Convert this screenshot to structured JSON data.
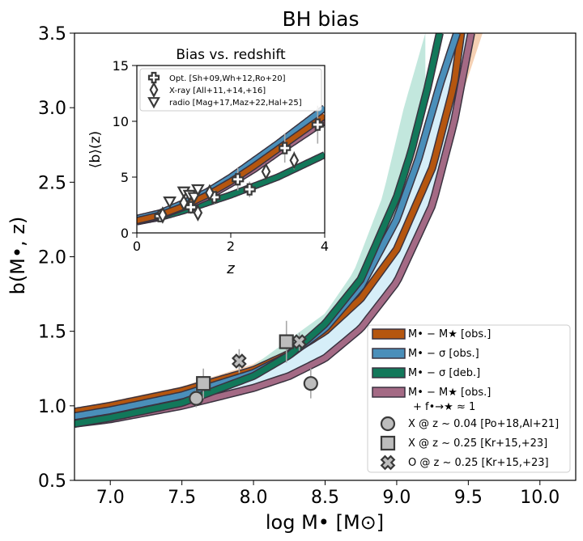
{
  "chart_data": [
    {
      "type": "line",
      "title": "BH bias",
      "xlabel": "log M• [M⊙]",
      "ylabel": "b(M•, z)",
      "xlim": [
        6.75,
        10.25
      ],
      "ylim": [
        0.5,
        3.5
      ],
      "xticks": [
        "7.0",
        "7.5",
        "8.0",
        "8.5",
        "9.0",
        "9.5",
        "10.0"
      ],
      "xtick_values": [
        7.0,
        7.5,
        8.0,
        8.5,
        9.0,
        9.5,
        10.0
      ],
      "yticks": [
        "0.5",
        "1.0",
        "1.5",
        "2.0",
        "2.5",
        "3.0",
        "3.5"
      ],
      "ytick_values": [
        0.5,
        1.0,
        1.5,
        2.0,
        2.5,
        3.0,
        3.5
      ],
      "grid": false,
      "legend_position": "bottom-right",
      "bands": [
        {
          "name": "M• − M★ [obs.] scatter",
          "color": "#f4cfb0",
          "x": [
            6.75,
            7.5,
            8.0,
            8.5,
            8.8,
            9.0,
            9.2,
            9.4,
            9.6
          ],
          "lower": [
            0.94,
            1.06,
            1.19,
            1.38,
            1.6,
            1.88,
            2.3,
            2.92,
            3.5
          ],
          "upper": [
            0.98,
            1.13,
            1.28,
            1.55,
            1.9,
            2.3,
            2.9,
            3.5,
            3.5
          ]
        },
        {
          "name": "M• − σ [deb.] scatter",
          "color": "#bfe6db",
          "x": [
            6.75,
            7.5,
            8.0,
            8.5,
            8.7,
            8.9,
            9.05,
            9.2
          ],
          "lower": [
            0.88,
            1.02,
            1.19,
            1.45,
            1.65,
            2.0,
            2.45,
            3.0
          ],
          "upper": [
            0.9,
            1.06,
            1.27,
            1.62,
            1.9,
            2.4,
            3.0,
            3.5
          ]
        }
      ],
      "series": [
        {
          "name": "M• − M★ [obs.]",
          "color": "#b5560f",
          "x": [
            6.75,
            7.0,
            7.5,
            8.0,
            8.25,
            8.5,
            8.75,
            9.0,
            9.25,
            9.4,
            9.45
          ],
          "y": [
            0.96,
            1.0,
            1.1,
            1.24,
            1.35,
            1.5,
            1.72,
            2.05,
            2.6,
            3.15,
            3.5
          ]
        },
        {
          "name": "M• − σ [obs.]",
          "color": "#4a8fba",
          "x": [
            6.75,
            7.0,
            7.5,
            8.0,
            8.25,
            8.5,
            8.75,
            9.0,
            9.15,
            9.3,
            9.42
          ],
          "y": [
            0.93,
            0.97,
            1.07,
            1.22,
            1.34,
            1.52,
            1.8,
            2.25,
            2.65,
            3.15,
            3.5
          ]
        },
        {
          "name": "M• − σ [deb.]",
          "color": "#12785a",
          "x": [
            6.75,
            7.0,
            7.5,
            8.0,
            8.25,
            8.5,
            8.75,
            9.0,
            9.1,
            9.22,
            9.3
          ],
          "y": [
            0.88,
            0.92,
            1.02,
            1.2,
            1.34,
            1.55,
            1.85,
            2.4,
            2.7,
            3.15,
            3.5
          ]
        },
        {
          "name": "M• − M★ [obs.] + f•→★ ≈ 1",
          "color": "#a46a85",
          "x": [
            6.75,
            7.0,
            7.5,
            8.0,
            8.25,
            8.5,
            8.75,
            9.0,
            9.25,
            9.4,
            9.52
          ],
          "y": [
            0.88,
            0.91,
            1.0,
            1.12,
            1.2,
            1.32,
            1.52,
            1.83,
            2.35,
            2.9,
            3.5
          ]
        }
      ],
      "points": [
        {
          "name": "X @ z~0.04 [Po+18,Al+21]",
          "marker": "circle",
          "x": [
            7.6,
            8.4
          ],
          "y": [
            1.05,
            1.15
          ],
          "yerr": [
            0.06,
            0.1
          ]
        },
        {
          "name": "X @ z~0.25 [Kr+15,+23]",
          "marker": "square",
          "x": [
            7.65,
            8.23
          ],
          "y": [
            1.15,
            1.43
          ],
          "yerr": [
            0.1,
            0.14
          ]
        },
        {
          "name": "O @ z~0.25 [Kr+15,+23]",
          "marker": "x",
          "x": [
            7.9,
            8.32
          ],
          "y": [
            1.3,
            1.43
          ],
          "yerr": [
            0.08,
            0.06
          ]
        }
      ]
    },
    {
      "type": "line",
      "title": "Bias vs. redshift",
      "xlabel": "z",
      "ylabel": "⟨b⟩(z)",
      "xlim": [
        0,
        4
      ],
      "ylim": [
        0,
        15
      ],
      "xticks": [
        "0",
        "2",
        "4"
      ],
      "xtick_values": [
        0,
        2,
        4
      ],
      "yticks": [
        "0",
        "5",
        "10",
        "15"
      ],
      "ytick_values": [
        0,
        5,
        10,
        15
      ],
      "legend_position": "top-left",
      "series": [
        {
          "name": "M• − σ [obs.]",
          "color": "#4a8fba",
          "x": [
            0,
            0.5,
            1,
            1.5,
            2,
            2.5,
            3,
            3.5,
            4
          ],
          "y": [
            1.3,
            1.8,
            2.7,
            3.7,
            5.0,
            6.5,
            8.0,
            9.6,
            11.2
          ]
        },
        {
          "name": "M• − M★ [obs.]",
          "color": "#b5560f",
          "x": [
            0,
            0.5,
            1,
            1.5,
            2,
            2.5,
            3,
            3.5,
            4
          ],
          "y": [
            1.1,
            1.6,
            2.4,
            3.4,
            4.6,
            6.0,
            7.5,
            9.0,
            10.5
          ]
        },
        {
          "name": "M• − σ [deb.]",
          "color": "#12785a",
          "x": [
            0,
            0.5,
            1,
            1.5,
            2,
            2.5,
            3,
            3.5,
            4
          ],
          "y": [
            1.0,
            1.4,
            2.0,
            2.7,
            3.4,
            4.2,
            5.0,
            6.0,
            7.0
          ]
        },
        {
          "name": "M• − M★ [obs.] + f•→★ ≈ 1",
          "color": "#a46a85",
          "x": [
            0,
            0.5,
            1,
            1.5,
            2,
            2.5,
            3,
            3.5,
            4
          ],
          "y": [
            1.0,
            1.5,
            2.3,
            3.2,
            4.4,
            5.7,
            7.2,
            8.6,
            10.0
          ]
        }
      ],
      "points": [
        {
          "name": "Opt. [Sh+09,Wh+12,Ro+20]",
          "marker": "plus",
          "x": [
            0.5,
            1.15,
            1.65,
            2.15,
            2.4,
            3.15,
            3.85
          ],
          "y": [
            1.5,
            2.3,
            3.2,
            4.8,
            3.9,
            7.6,
            9.7
          ],
          "yerr": [
            0.3,
            0.6,
            0.6,
            1.0,
            0.7,
            1.3,
            1.7
          ]
        },
        {
          "name": "X-ray [All+11,+14,+16]",
          "marker": "diamond",
          "x": [
            0.55,
            1.0,
            1.3,
            1.55,
            2.75,
            3.35
          ],
          "y": [
            1.6,
            2.7,
            1.8,
            3.6,
            5.5,
            6.5
          ],
          "yerr": [
            0.2,
            0.5,
            0.5,
            0.6,
            0.7,
            0.8
          ]
        },
        {
          "name": "radio [Mag+17,Maz+22,Hal+25]",
          "marker": "triangle-down",
          "x": [
            0.7,
            1.0,
            1.12,
            1.22,
            1.3
          ],
          "y": [
            2.8,
            3.7,
            3.4,
            3.2,
            3.9
          ],
          "yerr": [
            0.3,
            0.4,
            0.4,
            0.3,
            0.4
          ]
        }
      ]
    }
  ],
  "legend": {
    "entries": [
      {
        "label": "M• − M★ [obs.]",
        "color": "#b5560f"
      },
      {
        "label": "M• − σ [obs.]",
        "color": "#4a8fba"
      },
      {
        "label": "M• − σ [deb.]",
        "color": "#12785a"
      },
      {
        "label": "M• − M★ [obs.]",
        "label2": "+ f•→★ ≈ 1",
        "color": "#a46a85"
      },
      {
        "label": "X @ z ~ 0.04 [Po+18,Al+21]",
        "marker": "circle"
      },
      {
        "label": "X @ z ~ 0.25 [Kr+15,+23]",
        "marker": "square"
      },
      {
        "label": "O @ z ~ 0.25 [Kr+15,+23]",
        "marker": "x"
      }
    ]
  },
  "inset_legend": {
    "entries": [
      {
        "label": "Opt. [Sh+09,Wh+12,Ro+20]",
        "marker": "plus"
      },
      {
        "label": "X-ray [All+11,+14,+16]",
        "marker": "diamond"
      },
      {
        "label": "radio [Mag+17,Maz+22,Hal+25]",
        "marker": "triangle-down"
      }
    ]
  }
}
